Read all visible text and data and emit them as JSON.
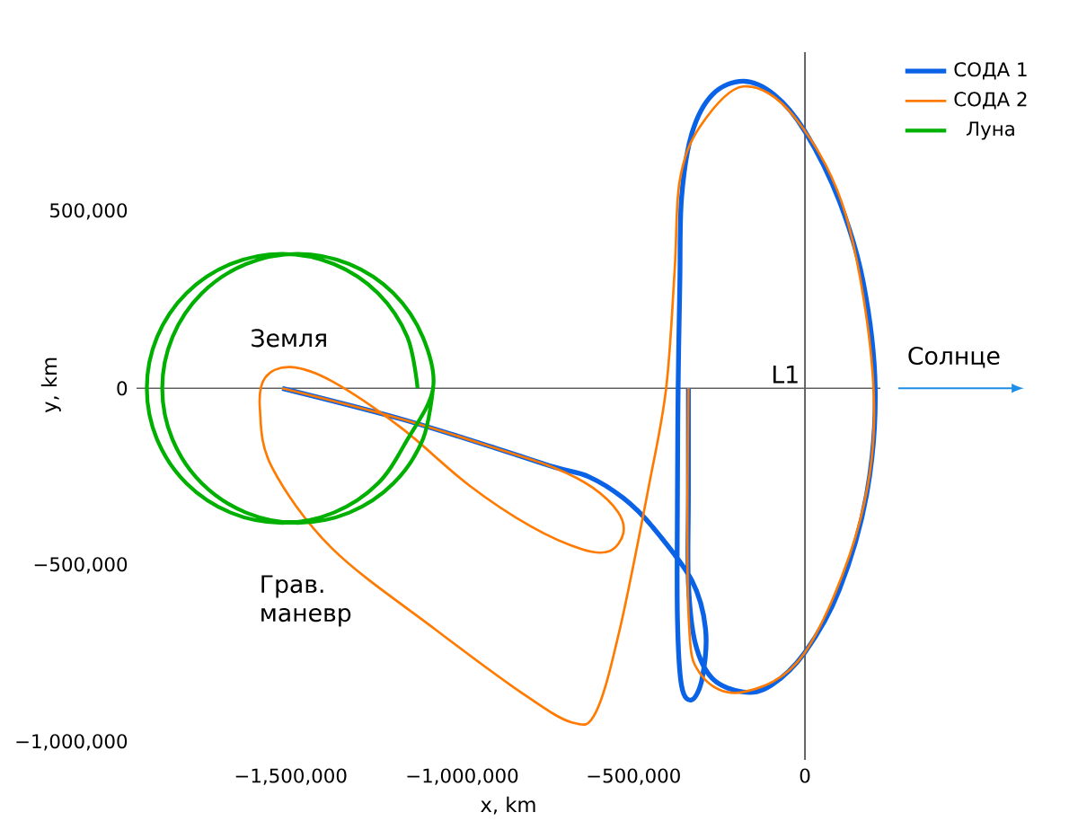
{
  "chart_data": {
    "type": "line",
    "xlabel": "x, km",
    "ylabel": "y, km",
    "xlim": [
      -1950000,
      220000
    ],
    "ylim": [
      -1050000,
      950000
    ],
    "xticks": [
      {
        "value": -1500000,
        "label": "−1,500,000"
      },
      {
        "value": -1000000,
        "label": "−1,000,000"
      },
      {
        "value": -500000,
        "label": "−500,000"
      },
      {
        "value": 0,
        "label": "0"
      }
    ],
    "yticks": [
      {
        "value": 500000,
        "label": "500,000"
      },
      {
        "value": 0,
        "label": "0"
      },
      {
        "value": -500000,
        "label": "−500,000"
      },
      {
        "value": -1000000,
        "label": "−1,000,000"
      }
    ],
    "grid": false,
    "legend": "top right",
    "marker": "none",
    "line_style": "solid",
    "ref_lines": [
      {
        "axis": "x",
        "value": 0,
        "color": "#404040"
      },
      {
        "axis": "y",
        "value": 0,
        "color": "#606060"
      }
    ],
    "annotations": [
      "Земля",
      {
        "text": "L1",
        "x": 0,
        "y": 0
      },
      "Грав. маневр",
      "Солнце"
    ],
    "series": [
      {
        "name": "СОДА 1",
        "color": "#0a62e6",
        "x": [
          -1525000,
          -1180000,
          -900000,
          -730000,
          -630000,
          -530000,
          -445000,
          -330000,
          -290000,
          -300000,
          -330000,
          -360000,
          -372000,
          -372000,
          -370000,
          -365000,
          -360000,
          -330000,
          -270000,
          -180000,
          -90000,
          0,
          100000,
          170000,
          205000,
          180000,
          100000,
          0,
          -100000,
          -180000,
          -270000,
          -320000,
          -340000,
          -340000,
          -340000
        ],
        "values": [
          0,
          -86000,
          -170000,
          -223000,
          -250000,
          -310000,
          -391000,
          -543000,
          -680000,
          -820000,
          -880000,
          -840000,
          -650000,
          -300000,
          0,
          300000,
          538000,
          720000,
          830000,
          868000,
          830000,
          726000,
          530000,
          300000,
          0,
          -300000,
          -570000,
          -746000,
          -840000,
          -858000,
          -820000,
          -720000,
          -550000,
          -300000,
          0
        ]
      },
      {
        "name": "СОДА 2",
        "color": "#ff7a00",
        "x": [
          -1525000,
          -1180000,
          -900000,
          -730000,
          -620000,
          -545000,
          -530000,
          -570000,
          -650000,
          -800000,
          -980000,
          -1180000,
          -1380000,
          -1500000,
          -1575000,
          -1590000,
          -1555000,
          -1380000,
          -1080000,
          -830000,
          -680000,
          -610000,
          -540000,
          -455000,
          -405000,
          -380000,
          -365000,
          -305000,
          -180000,
          -30000,
          120000,
          200000,
          160000,
          0,
          -180000,
          -305000,
          -340000,
          -340000
        ],
        "values": [
          0,
          -86000,
          -170000,
          -225000,
          -280000,
          -350000,
          -410000,
          -460000,
          -455000,
          -390000,
          -274000,
          -110000,
          20000,
          60000,
          30000,
          -60000,
          -223000,
          -452000,
          -680000,
          -858000,
          -944000,
          -915000,
          -680000,
          -274000,
          0,
          335000,
          589000,
          741000,
          853000,
          766000,
          487000,
          0,
          -376000,
          -746000,
          -858000,
          -807000,
          -630000,
          0
        ]
      },
      {
        "name": "Луна",
        "color": "#00b000",
        "x": [
          -1130000,
          -1160000,
          -1246000,
          -1374000,
          -1525000,
          -1676000,
          -1804000,
          -1890000,
          -1920000,
          -1890000,
          -1804000,
          -1676000,
          -1525000,
          -1374000,
          -1246000,
          -1160000,
          -1085000,
          -1115000,
          -1201000,
          -1329000,
          -1480000,
          -1631000,
          -1759000,
          -1845000,
          -1875000,
          -1845000,
          -1759000,
          -1631000,
          -1480000,
          -1329000,
          -1201000,
          -1115000,
          -1085000
        ],
        "values": [
          0,
          145000,
          269000,
          351000,
          380000,
          351000,
          269000,
          145000,
          0,
          -145000,
          -269000,
          -351000,
          -380000,
          -351000,
          -269000,
          -145000,
          0,
          145000,
          269000,
          351000,
          380000,
          351000,
          269000,
          145000,
          0,
          -145000,
          -269000,
          -351000,
          -380000,
          -351000,
          -269000,
          -145000,
          0
        ]
      }
    ]
  }
}
